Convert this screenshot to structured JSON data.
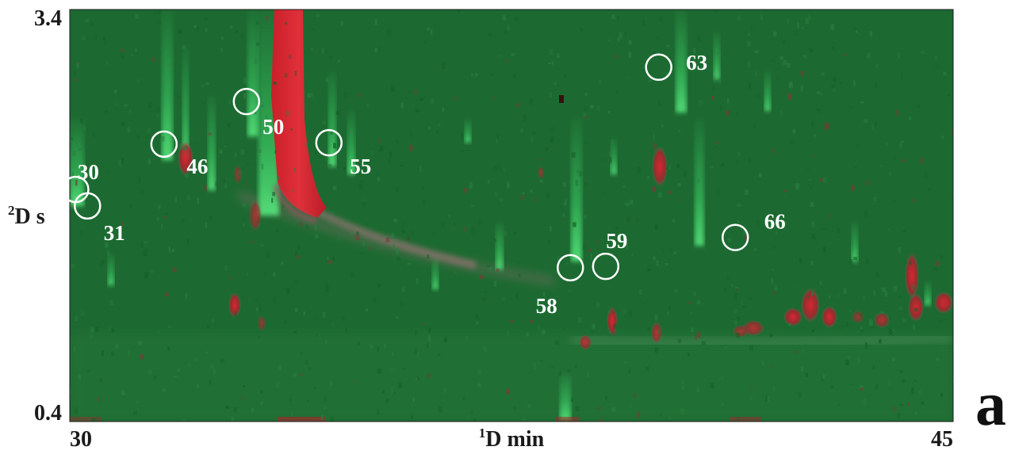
{
  "chart_data": {
    "type": "heatmap",
    "title": "",
    "panel_label": "a",
    "xlabel": {
      "sup": "1",
      "text": "D min"
    },
    "ylabel": {
      "sup": "2",
      "text": "D s"
    },
    "xlim": [
      30,
      45
    ],
    "ylim": [
      0.4,
      3.4
    ],
    "x_ticks": [
      "30",
      "45"
    ],
    "y_ticks": [
      "3.4",
      "0.4"
    ],
    "colors": {
      "background": "#1c6a31",
      "high_signal": "#d8262e",
      "streak": "#3fd56a",
      "circle": "#ffffff"
    },
    "peaks": [
      {
        "label": "30",
        "x": 30.1,
        "y": 2.09
      },
      {
        "label": "31",
        "x": 30.3,
        "y": 1.97
      },
      {
        "label": "46",
        "x": 31.6,
        "y": 2.42
      },
      {
        "label": "50",
        "x": 33.0,
        "y": 2.73
      },
      {
        "label": "55",
        "x": 34.4,
        "y": 2.43
      },
      {
        "label": "58",
        "x": 38.5,
        "y": 1.52
      },
      {
        "label": "59",
        "x": 39.1,
        "y": 1.53
      },
      {
        "label": "63",
        "x": 40.0,
        "y": 2.98
      },
      {
        "label": "66",
        "x": 41.3,
        "y": 1.74
      }
    ]
  }
}
